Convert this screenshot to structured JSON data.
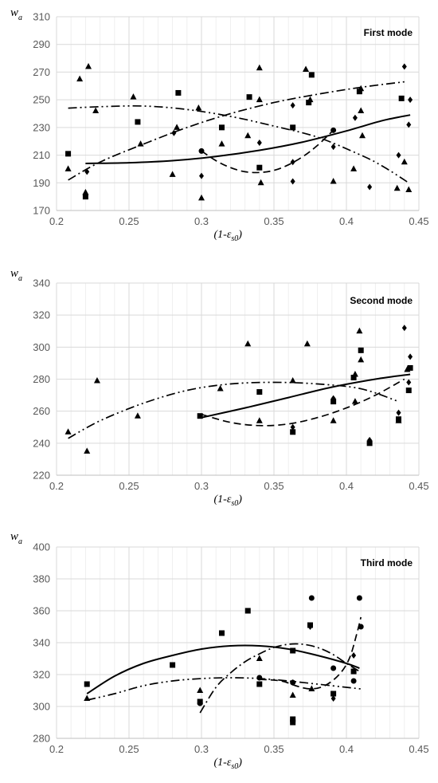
{
  "chart_data": [
    {
      "type": "scatter",
      "title": "First mode",
      "ylabel_main": "w",
      "ylabel_sub": "a",
      "xlabel_prefix": "(1-",
      "xlabel_symbol": "ε",
      "xlabel_sub": "s0",
      "xlabel_suffix": ")",
      "xlim": [
        0.2,
        0.45
      ],
      "ylim": [
        170,
        310
      ],
      "xticks": [
        0.2,
        0.25,
        0.3,
        0.35,
        0.4,
        0.45
      ],
      "xtick_labels": [
        "0.2",
        "0.25",
        "0.3",
        "0.35",
        "0.4",
        "0.45"
      ],
      "yticks": [
        170,
        190,
        210,
        230,
        250,
        270,
        290,
        310
      ],
      "ytick_labels": [
        "170",
        "190",
        "210",
        "230",
        "250",
        "270",
        "290",
        "310"
      ],
      "grid": true,
      "series": [
        {
          "marker": "triangle",
          "points": [
            [
              0.208,
              200
            ],
            [
              0.216,
              265
            ],
            [
              0.22,
              183
            ],
            [
              0.222,
              274
            ],
            [
              0.227,
              242
            ],
            [
              0.253,
              252
            ],
            [
              0.258,
              218
            ],
            [
              0.28,
              196
            ],
            [
              0.283,
              230
            ],
            [
              0.298,
              244
            ],
            [
              0.3,
              179
            ],
            [
              0.314,
              218
            ],
            [
              0.332,
              224
            ],
            [
              0.34,
              273
            ],
            [
              0.34,
              250
            ],
            [
              0.341,
              190
            ],
            [
              0.372,
              272
            ],
            [
              0.375,
              250
            ],
            [
              0.391,
              191
            ],
            [
              0.405,
              200
            ],
            [
              0.41,
              242
            ],
            [
              0.411,
              224
            ],
            [
              0.41,
              258
            ],
            [
              0.435,
              186
            ],
            [
              0.44,
              205
            ],
            [
              0.443,
              185
            ]
          ]
        },
        {
          "marker": "square",
          "points": [
            [
              0.208,
              211
            ],
            [
              0.22,
              180
            ],
            [
              0.256,
              234
            ],
            [
              0.284,
              255
            ],
            [
              0.314,
              230
            ],
            [
              0.333,
              252
            ],
            [
              0.34,
              201
            ],
            [
              0.363,
              230
            ],
            [
              0.374,
              248
            ],
            [
              0.376,
              268
            ],
            [
              0.409,
              256
            ],
            [
              0.438,
              251
            ]
          ]
        },
        {
          "marker": "diamond",
          "points": [
            [
              0.221,
              198
            ],
            [
              0.281,
              226
            ],
            [
              0.3,
              195
            ],
            [
              0.34,
              219
            ],
            [
              0.363,
              191
            ],
            [
              0.363,
              205
            ],
            [
              0.363,
              246
            ],
            [
              0.391,
              216
            ],
            [
              0.406,
              237
            ],
            [
              0.416,
              187
            ],
            [
              0.436,
              210
            ],
            [
              0.44,
              274
            ],
            [
              0.443,
              232
            ],
            [
              0.444,
              250
            ]
          ]
        },
        {
          "marker": "circle",
          "points": [
            [
              0.3,
              213
            ],
            [
              0.391,
              228
            ]
          ]
        }
      ],
      "fits": [
        {
          "style": "solid",
          "points": [
            [
              0.22,
              204
            ],
            [
              0.25,
              204.5
            ],
            [
              0.28,
              206
            ],
            [
              0.31,
              209
            ],
            [
              0.34,
              213.5
            ],
            [
              0.37,
              219.5
            ],
            [
              0.4,
              227.5
            ],
            [
              0.425,
              235
            ],
            [
              0.444,
              239
            ]
          ]
        },
        {
          "style": "dash",
          "points": [
            [
              0.3,
              213
            ],
            [
              0.31,
              206
            ],
            [
              0.32,
              201
            ],
            [
              0.33,
              198
            ],
            [
              0.34,
              197.5
            ],
            [
              0.35,
              199
            ],
            [
              0.36,
              203
            ],
            [
              0.37,
              209
            ],
            [
              0.38,
              217
            ],
            [
              0.391,
              228
            ]
          ]
        },
        {
          "style": "dash-dot",
          "points": [
            [
              0.208,
              192
            ],
            [
              0.23,
              205
            ],
            [
              0.26,
              218
            ],
            [
              0.29,
              230
            ],
            [
              0.32,
              240
            ],
            [
              0.35,
              248
            ],
            [
              0.38,
              254
            ],
            [
              0.41,
              259
            ],
            [
              0.44,
              263
            ]
          ]
        },
        {
          "style": "dash-dot-dot",
          "points": [
            [
              0.208,
              244
            ],
            [
              0.23,
              245
            ],
            [
              0.26,
              245.5
            ],
            [
              0.29,
              243
            ],
            [
              0.32,
              238
            ],
            [
              0.35,
              231
            ],
            [
              0.38,
              223
            ],
            [
              0.41,
              210
            ],
            [
              0.425,
              202
            ],
            [
              0.443,
              190
            ]
          ]
        }
      ]
    },
    {
      "type": "scatter",
      "title": "Second mode",
      "ylabel_main": "w",
      "ylabel_sub": "a",
      "xlabel_prefix": "(1-",
      "xlabel_symbol": "ε",
      "xlabel_sub": "s0",
      "xlabel_suffix": ")",
      "xlim": [
        0.2,
        0.45
      ],
      "ylim": [
        220,
        340
      ],
      "xticks": [
        0.2,
        0.25,
        0.3,
        0.35,
        0.4,
        0.45
      ],
      "xtick_labels": [
        "0.2",
        "0.25",
        "0.3",
        "0.35",
        "0.4",
        "0.45"
      ],
      "yticks": [
        220,
        240,
        260,
        280,
        300,
        320,
        340
      ],
      "ytick_labels": [
        "220",
        "240",
        "260",
        "280",
        "300",
        "320",
        "340"
      ],
      "grid": true,
      "series": [
        {
          "marker": "triangle",
          "points": [
            [
              0.208,
              247
            ],
            [
              0.221,
              235
            ],
            [
              0.228,
              279
            ],
            [
              0.256,
              257
            ],
            [
              0.313,
              274
            ],
            [
              0.332,
              302
            ],
            [
              0.34,
              254
            ],
            [
              0.363,
              279
            ],
            [
              0.373,
              302
            ],
            [
              0.391,
              254
            ],
            [
              0.406,
              266
            ],
            [
              0.406,
              283
            ],
            [
              0.409,
              310
            ],
            [
              0.41,
              292
            ],
            [
              0.436,
              254
            ],
            [
              0.442,
              286
            ]
          ]
        },
        {
          "marker": "square",
          "points": [
            [
              0.299,
              257
            ],
            [
              0.34,
              272
            ],
            [
              0.363,
              247
            ],
            [
              0.391,
              266
            ],
            [
              0.405,
              281
            ],
            [
              0.41,
              298
            ],
            [
              0.416,
              240
            ],
            [
              0.436,
              255
            ],
            [
              0.443,
              273
            ],
            [
              0.444,
              287
            ]
          ]
        },
        {
          "marker": "diamond",
          "points": [
            [
              0.363,
              250
            ],
            [
              0.391,
              268
            ],
            [
              0.416,
              242
            ],
            [
              0.436,
              259
            ],
            [
              0.44,
              312
            ],
            [
              0.443,
              278
            ],
            [
              0.444,
              294
            ]
          ]
        }
      ],
      "fits": [
        {
          "style": "solid",
          "points": [
            [
              0.3,
              256
            ],
            [
              0.33,
              262
            ],
            [
              0.36,
              268.5
            ],
            [
              0.39,
              275
            ],
            [
              0.42,
              280
            ],
            [
              0.444,
              283
            ]
          ]
        },
        {
          "style": "dash",
          "points": [
            [
              0.3,
              258
            ],
            [
              0.32,
              253
            ],
            [
              0.34,
              251
            ],
            [
              0.36,
              252
            ],
            [
              0.38,
              256
            ],
            [
              0.4,
              262
            ],
            [
              0.42,
              270
            ],
            [
              0.44,
              280
            ]
          ]
        },
        {
          "style": "dash-dot-dot",
          "points": [
            [
              0.208,
              243
            ],
            [
              0.23,
              254
            ],
            [
              0.26,
              265
            ],
            [
              0.29,
              273
            ],
            [
              0.32,
              277
            ],
            [
              0.35,
              278
            ],
            [
              0.38,
              277
            ],
            [
              0.41,
              274
            ],
            [
              0.436,
              266
            ]
          ]
        }
      ]
    },
    {
      "type": "scatter",
      "title": "Third mode",
      "ylabel_main": "w",
      "ylabel_sub": "a",
      "xlabel_prefix": "(1-",
      "xlabel_symbol": "ε",
      "xlabel_sub": "s0",
      "xlabel_suffix": ")",
      "xlim": [
        0.2,
        0.45
      ],
      "ylim": [
        280,
        400
      ],
      "xticks": [
        0.2,
        0.25,
        0.3,
        0.35,
        0.4,
        0.45
      ],
      "xtick_labels": [
        "0.2",
        "0.25",
        "0.3",
        "0.35",
        "0.4",
        "0.45"
      ],
      "yticks": [
        280,
        300,
        320,
        340,
        360,
        380,
        400
      ],
      "ytick_labels": [
        "280",
        "300",
        "320",
        "340",
        "360",
        "380",
        "400"
      ],
      "grid": true,
      "series": [
        {
          "marker": "triangle",
          "points": [
            [
              0.221,
              305
            ],
            [
              0.299,
              310
            ],
            [
              0.34,
              330
            ],
            [
              0.363,
              307
            ],
            [
              0.376,
              311
            ]
          ]
        },
        {
          "marker": "square",
          "points": [
            [
              0.221,
              314
            ],
            [
              0.28,
              326
            ],
            [
              0.299,
              303
            ],
            [
              0.314,
              346
            ],
            [
              0.332,
              360
            ],
            [
              0.34,
              314
            ],
            [
              0.363,
              335
            ],
            [
              0.363,
              290
            ],
            [
              0.363,
              292
            ],
            [
              0.375,
              351
            ],
            [
              0.391,
              308
            ],
            [
              0.405,
              322
            ]
          ]
        },
        {
          "marker": "diamond",
          "points": [
            [
              0.363,
              315
            ],
            [
              0.375,
              350
            ],
            [
              0.391,
              305
            ],
            [
              0.405,
              332
            ]
          ]
        },
        {
          "marker": "circle",
          "points": [
            [
              0.299,
              302
            ],
            [
              0.34,
              318
            ],
            [
              0.363,
              315
            ],
            [
              0.376,
              368
            ],
            [
              0.391,
              324
            ],
            [
              0.405,
              316
            ],
            [
              0.409,
              368
            ],
            [
              0.41,
              350
            ]
          ]
        }
      ],
      "fits": [
        {
          "style": "solid",
          "points": [
            [
              0.221,
              308
            ],
            [
              0.24,
              319
            ],
            [
              0.26,
              327
            ],
            [
              0.28,
              332
            ],
            [
              0.3,
              336
            ],
            [
              0.32,
              338
            ],
            [
              0.34,
              338
            ],
            [
              0.36,
              336
            ],
            [
              0.38,
              332
            ],
            [
              0.4,
              327
            ],
            [
              0.409,
              324
            ]
          ]
        },
        {
          "style": "dash",
          "points": [
            [
              0.34,
              317
            ],
            [
              0.355,
              316
            ],
            [
              0.365,
              313
            ],
            [
              0.375,
              311
            ],
            [
              0.385,
              313
            ],
            [
              0.395,
              320
            ],
            [
              0.402,
              330
            ],
            [
              0.407,
              345
            ],
            [
              0.41,
              356
            ]
          ]
        },
        {
          "style": "dash-dot",
          "points": [
            [
              0.299,
              296
            ],
            [
              0.31,
              312
            ],
            [
              0.32,
              321
            ],
            [
              0.33,
              328
            ],
            [
              0.34,
              333
            ],
            [
              0.35,
              337
            ],
            [
              0.36,
              339
            ],
            [
              0.37,
              339
            ],
            [
              0.38,
              337
            ],
            [
              0.39,
              333
            ],
            [
              0.4,
              327
            ],
            [
              0.409,
              322
            ]
          ]
        },
        {
          "style": "dash-dot-dot",
          "points": [
            [
              0.221,
              304
            ],
            [
              0.24,
              308
            ],
            [
              0.26,
              313
            ],
            [
              0.28,
              316
            ],
            [
              0.3,
              317.5
            ],
            [
              0.32,
              318
            ],
            [
              0.34,
              317.5
            ],
            [
              0.36,
              316
            ],
            [
              0.38,
              314
            ],
            [
              0.4,
              312
            ],
            [
              0.41,
              311
            ]
          ]
        }
      ]
    }
  ]
}
